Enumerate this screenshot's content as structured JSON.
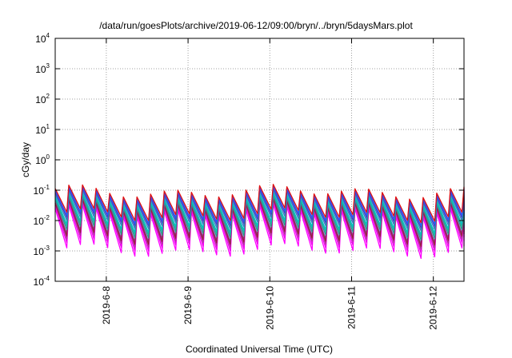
{
  "chart_data": {
    "type": "line",
    "title": "/data/run/goesPlots/archive/2019-06-12/09:00/bryn/../bryn/5daysMars.plot",
    "xlabel": "Coordinated Universal Time (UTC)",
    "ylabel": "cGy/day",
    "yscale": "log",
    "ylim": [
      0.0001,
      10000
    ],
    "xlim": [
      "2019-06-07 09:00",
      "2019-06-12 09:00"
    ],
    "grid": true,
    "legend": "none",
    "x_ticks": [
      "2019-6-8",
      "2019-6-9",
      "2019-6-10",
      "2019-6-11",
      "2019-6-12"
    ],
    "y_ticks": [
      {
        "base": "10",
        "exp": "-4",
        "value": 0.0001
      },
      {
        "base": "10",
        "exp": "-3",
        "value": 0.001
      },
      {
        "base": "10",
        "exp": "-2",
        "value": 0.01
      },
      {
        "base": "10",
        "exp": "-1",
        "value": 0.1
      },
      {
        "base": "10",
        "exp": "0",
        "value": 1
      },
      {
        "base": "10",
        "exp": "1",
        "value": 10
      },
      {
        "base": "10",
        "exp": "2",
        "value": 100
      },
      {
        "base": "10",
        "exp": "3",
        "value": 1000
      },
      {
        "base": "10",
        "exp": "4",
        "value": 10000
      }
    ],
    "sawtooth_period_hours": 4,
    "series": [
      {
        "color": "#ff00ff",
        "peak": 0.02,
        "trough": 0.001
      },
      {
        "color": "#ee00ee",
        "peak": 0.025,
        "trough": 0.0015
      },
      {
        "color": "#b0309a",
        "peak": 0.03,
        "trough": 0.002
      },
      {
        "color": "#8a3fa8",
        "peak": 0.035,
        "trough": 0.003
      },
      {
        "color": "#9a2040",
        "peak": 0.03,
        "trough": 0.0025
      },
      {
        "color": "#2a9a8a",
        "peak": 0.04,
        "trough": 0.004
      },
      {
        "color": "#22b0a0",
        "peak": 0.045,
        "trough": 0.005
      },
      {
        "color": "#00c0c0",
        "peak": 0.05,
        "trough": 0.006
      },
      {
        "color": "#3a7ac0",
        "peak": 0.06,
        "trough": 0.008
      },
      {
        "color": "#4040c8",
        "peak": 0.07,
        "trough": 0.01
      },
      {
        "color": "#3050ff",
        "peak": 0.08,
        "trough": 0.012
      },
      {
        "color": "#e01010",
        "peak": 0.09,
        "trough": 0.015
      }
    ]
  }
}
